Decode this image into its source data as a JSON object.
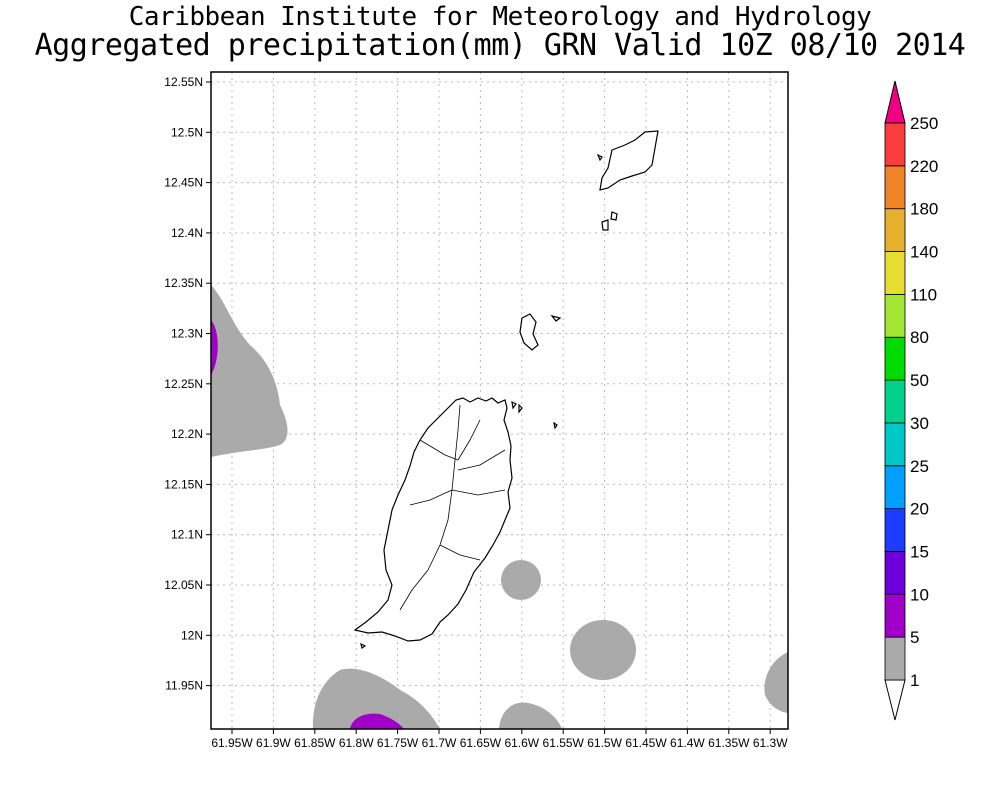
{
  "title_line1": "Caribbean Institute for Meteorology and Hydrology",
  "title_line2": "Aggregated precipitation(mm) GRN Valid 10Z 08/10 2014",
  "map": {
    "lat_labels": [
      "12.55N",
      "12.5N",
      "12.45N",
      "12.4N",
      "12.35N",
      "12.3N",
      "12.25N",
      "12.2N",
      "12.15N",
      "12.1N",
      "12.05N",
      "12N",
      "11.95N"
    ],
    "lon_labels": [
      "61.95W",
      "61.9W",
      "61.85W",
      "61.8W",
      "61.75W",
      "61.7W",
      "61.65W",
      "61.6W",
      "61.55W",
      "61.5W",
      "61.45W",
      "61.4W",
      "61.35W",
      "61.3W"
    ],
    "grid": true,
    "regions": [
      "Grenada",
      "Carriacou",
      "Petite Martinique"
    ]
  },
  "legend": {
    "bins": [
      {
        "label": "1",
        "color": "#aaaaaa"
      },
      {
        "label": "5",
        "color": "#a000c8"
      },
      {
        "label": "10",
        "color": "#6e00dc"
      },
      {
        "label": "15",
        "color": "#1e3cff"
      },
      {
        "label": "20",
        "color": "#00a0ff"
      },
      {
        "label": "25",
        "color": "#00c8c8"
      },
      {
        "label": "30",
        "color": "#00d28c"
      },
      {
        "label": "50",
        "color": "#00dc00"
      },
      {
        "label": "80",
        "color": "#a0e632"
      },
      {
        "label": "110",
        "color": "#e6dc32"
      },
      {
        "label": "140",
        "color": "#e6af2d"
      },
      {
        "label": "180",
        "color": "#f08228"
      },
      {
        "label": "220",
        "color": "#fa3c3c"
      },
      {
        "label": "250",
        "color": "#f00082"
      }
    ]
  }
}
